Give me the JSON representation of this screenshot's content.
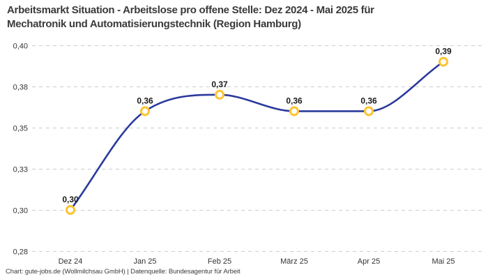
{
  "title_line1": "Arbeitsmarkt Situation - Arbeitslose pro offene Stelle: Dez 2024 - Mai 2025 für",
  "title_line2": "Mechatronik und Automatisierungstechnik (Region Hamburg)",
  "footer": "Chart: gute-jobs.de (Wollmilchsau GmbH) | Datenquelle: Bundesagentur für Arbeit",
  "chart_data": {
    "type": "line",
    "title": "Arbeitsmarkt Situation - Arbeitslose pro offene Stelle: Dez 2024 - Mai 2025 für Mechatronik und Automatisierungstechnik (Region Hamburg)",
    "categories": [
      "Dez 24",
      "Jan 25",
      "Feb 25",
      "März 25",
      "Apr 25",
      "Mai 25"
    ],
    "values": [
      0.3,
      0.36,
      0.37,
      0.36,
      0.36,
      0.39
    ],
    "point_labels": [
      "0,30",
      "0,36",
      "0,37",
      "0,36",
      "0,36",
      "0,39"
    ],
    "y_ticks": [
      0.4,
      0.375,
      0.35,
      0.325,
      0.3,
      0.275
    ],
    "y_tick_labels": [
      "0,40",
      "0,38",
      "0,35",
      "0,33",
      "0,30",
      "0,28"
    ],
    "ylim": [
      0.275,
      0.4
    ],
    "xlabel": "",
    "ylabel": "",
    "grid": "horizontal-dashed",
    "legend": "none",
    "smooth": true,
    "colors": {
      "line": "#2b3a9c",
      "marker_ring": "#fdc32f",
      "marker_fill": "#ffffff",
      "gridline": "#cccccc",
      "tick_text": "#333333",
      "point_label_text": "#1a1a1a",
      "title_text": "#3a3a3a",
      "background": "#ffffff"
    }
  }
}
